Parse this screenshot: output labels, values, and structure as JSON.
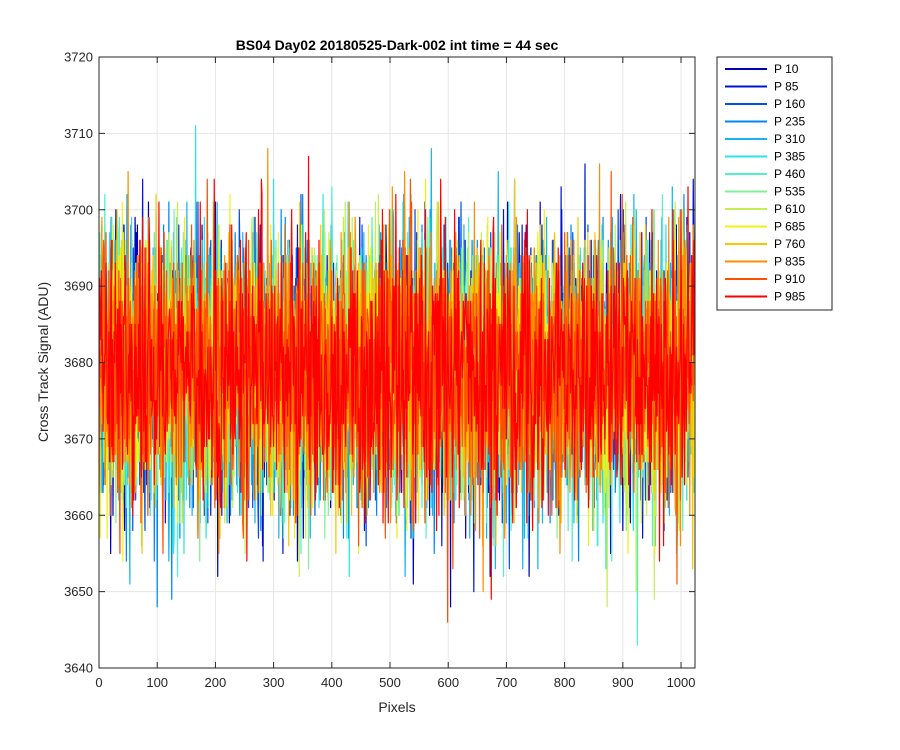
{
  "chart_data": {
    "type": "line",
    "title": "BS04 Day02 20180525-Dark-002 int time = 44 sec",
    "xlabel": "Pixels",
    "ylabel": "Cross Track Signal (ADU)",
    "xlim": [
      0,
      1024
    ],
    "ylim": [
      3640,
      3720
    ],
    "xticks": [
      0,
      100,
      200,
      300,
      400,
      500,
      600,
      700,
      800,
      900,
      1000
    ],
    "yticks": [
      3640,
      3650,
      3660,
      3670,
      3680,
      3690,
      3700,
      3710,
      3720
    ],
    "grid": true,
    "legend_position": "outside-top-right",
    "noise_model": {
      "mean": 3679,
      "std": 8.5,
      "min": 3643,
      "max": 3716,
      "points_per_series": 1024
    },
    "series": [
      {
        "name": "P 10",
        "color": "#0000b4"
      },
      {
        "name": "P 85",
        "color": "#0014d2"
      },
      {
        "name": "P 160",
        "color": "#0050e6"
      },
      {
        "name": "P 235",
        "color": "#0088f0"
      },
      {
        "name": "P 310",
        "color": "#14b4f0"
      },
      {
        "name": "P 385",
        "color": "#28e6e6"
      },
      {
        "name": "P 460",
        "color": "#50f0c8"
      },
      {
        "name": "P 535",
        "color": "#82f096"
      },
      {
        "name": "P 610",
        "color": "#c3f050"
      },
      {
        "name": "P 685",
        "color": "#f0f014"
      },
      {
        "name": "P 760",
        "color": "#f7c800"
      },
      {
        "name": "P 835",
        "color": "#ff8c00"
      },
      {
        "name": "P 910",
        "color": "#ff5000"
      },
      {
        "name": "P 985",
        "color": "#ff0000"
      }
    ]
  }
}
